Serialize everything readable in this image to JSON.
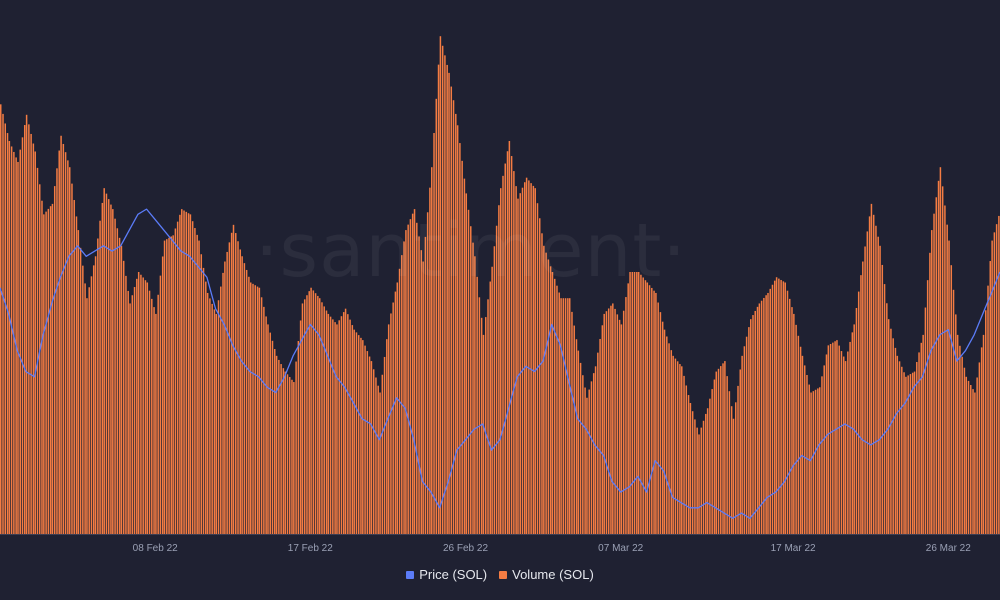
{
  "chart_data": {
    "type": "bar+line",
    "watermark": "·santiment·",
    "x_tick_labels": [
      "08 Feb 22",
      "17 Feb 22",
      "26 Feb 22",
      "07 Mar 22",
      "17 Mar 22",
      "26 Mar 22"
    ],
    "x_range": [
      "2022-01-30",
      "2022-03-29"
    ],
    "series": [
      {
        "name": "Volume (SOL)",
        "type": "bar",
        "color": "#f47c43",
        "points": [
          [
            "2022-01-30T00:00",
            82
          ],
          [
            "2022-01-30T12:00",
            75
          ],
          [
            "2022-01-31T00:00",
            71
          ],
          [
            "2022-01-31T12:00",
            80
          ],
          [
            "2022-02-01T00:00",
            73
          ],
          [
            "2022-02-01T12:00",
            61
          ],
          [
            "2022-02-02T00:00",
            63
          ],
          [
            "2022-02-02T12:00",
            76
          ],
          [
            "2022-02-03T00:00",
            70
          ],
          [
            "2022-02-03T12:00",
            58
          ],
          [
            "2022-02-04T00:00",
            45
          ],
          [
            "2022-02-04T12:00",
            53
          ],
          [
            "2022-02-05T00:00",
            66
          ],
          [
            "2022-02-05T12:00",
            62
          ],
          [
            "2022-02-06T00:00",
            55
          ],
          [
            "2022-02-06T12:00",
            44
          ],
          [
            "2022-02-07T00:00",
            50
          ],
          [
            "2022-02-07T12:00",
            48
          ],
          [
            "2022-02-08T00:00",
            42
          ],
          [
            "2022-02-08T12:00",
            56
          ],
          [
            "2022-02-09T00:00",
            57
          ],
          [
            "2022-02-09T12:00",
            62
          ],
          [
            "2022-02-10T00:00",
            61
          ],
          [
            "2022-02-10T12:00",
            56
          ],
          [
            "2022-02-11T00:00",
            46
          ],
          [
            "2022-02-11T12:00",
            42
          ],
          [
            "2022-02-12T00:00",
            52
          ],
          [
            "2022-02-12T12:00",
            59
          ],
          [
            "2022-02-13T00:00",
            53
          ],
          [
            "2022-02-13T12:00",
            48
          ],
          [
            "2022-02-14T00:00",
            47
          ],
          [
            "2022-02-14T12:00",
            40
          ],
          [
            "2022-02-15T00:00",
            34
          ],
          [
            "2022-02-15T12:00",
            31
          ],
          [
            "2022-02-16T00:00",
            29
          ],
          [
            "2022-02-16T12:00",
            44
          ],
          [
            "2022-02-17T00:00",
            47
          ],
          [
            "2022-02-17T12:00",
            45
          ],
          [
            "2022-02-18T00:00",
            42
          ],
          [
            "2022-02-18T12:00",
            40
          ],
          [
            "2022-02-19T00:00",
            43
          ],
          [
            "2022-02-19T12:00",
            39
          ],
          [
            "2022-02-20T00:00",
            37
          ],
          [
            "2022-02-20T12:00",
            33
          ],
          [
            "2022-02-21T00:00",
            27
          ],
          [
            "2022-02-21T12:00",
            40
          ],
          [
            "2022-02-22T00:00",
            48
          ],
          [
            "2022-02-22T12:00",
            58
          ],
          [
            "2022-02-23T00:00",
            62
          ],
          [
            "2022-02-23T12:00",
            52
          ],
          [
            "2022-02-24T00:00",
            70
          ],
          [
            "2022-02-24T12:00",
            95
          ],
          [
            "2022-02-25T00:00",
            88
          ],
          [
            "2022-02-25T12:00",
            78
          ],
          [
            "2022-02-26T00:00",
            65
          ],
          [
            "2022-02-26T12:00",
            53
          ],
          [
            "2022-02-27T00:00",
            38
          ],
          [
            "2022-02-27T12:00",
            51
          ],
          [
            "2022-02-28T00:00",
            66
          ],
          [
            "2022-02-28T12:00",
            75
          ],
          [
            "2022-03-01T00:00",
            64
          ],
          [
            "2022-03-01T12:00",
            68
          ],
          [
            "2022-03-02T00:00",
            66
          ],
          [
            "2022-03-02T12:00",
            55
          ],
          [
            "2022-03-03T00:00",
            50
          ],
          [
            "2022-03-03T12:00",
            45
          ],
          [
            "2022-03-04T00:00",
            45
          ],
          [
            "2022-03-04T12:00",
            35
          ],
          [
            "2022-03-05T00:00",
            26
          ],
          [
            "2022-03-05T12:00",
            32
          ],
          [
            "2022-03-06T00:00",
            42
          ],
          [
            "2022-03-06T12:00",
            44
          ],
          [
            "2022-03-07T00:00",
            40
          ],
          [
            "2022-03-07T12:00",
            50
          ],
          [
            "2022-03-08T00:00",
            50
          ],
          [
            "2022-03-08T12:00",
            48
          ],
          [
            "2022-03-09T00:00",
            46
          ],
          [
            "2022-03-09T12:00",
            39
          ],
          [
            "2022-03-10T00:00",
            34
          ],
          [
            "2022-03-10T12:00",
            32
          ],
          [
            "2022-03-11T00:00",
            25
          ],
          [
            "2022-03-11T12:00",
            19
          ],
          [
            "2022-03-12T00:00",
            24
          ],
          [
            "2022-03-12T12:00",
            31
          ],
          [
            "2022-03-13T00:00",
            33
          ],
          [
            "2022-03-13T12:00",
            22
          ],
          [
            "2022-03-14T00:00",
            34
          ],
          [
            "2022-03-14T12:00",
            41
          ],
          [
            "2022-03-15T00:00",
            44
          ],
          [
            "2022-03-15T12:00",
            46
          ],
          [
            "2022-03-16T00:00",
            49
          ],
          [
            "2022-03-16T12:00",
            48
          ],
          [
            "2022-03-17T00:00",
            42
          ],
          [
            "2022-03-17T12:00",
            34
          ],
          [
            "2022-03-18T00:00",
            27
          ],
          [
            "2022-03-18T12:00",
            28
          ],
          [
            "2022-03-19T00:00",
            36
          ],
          [
            "2022-03-19T12:00",
            37
          ],
          [
            "2022-03-20T00:00",
            33
          ],
          [
            "2022-03-20T12:00",
            40
          ],
          [
            "2022-03-21T00:00",
            52
          ],
          [
            "2022-03-21T12:00",
            63
          ],
          [
            "2022-03-22T00:00",
            55
          ],
          [
            "2022-03-22T12:00",
            41
          ],
          [
            "2022-03-23T00:00",
            34
          ],
          [
            "2022-03-23T12:00",
            30
          ],
          [
            "2022-03-24T00:00",
            31
          ],
          [
            "2022-03-24T12:00",
            38
          ],
          [
            "2022-03-25T00:00",
            58
          ],
          [
            "2022-03-25T12:00",
            70
          ],
          [
            "2022-03-26T00:00",
            56
          ],
          [
            "2022-03-26T12:00",
            38
          ],
          [
            "2022-03-27T00:00",
            30
          ],
          [
            "2022-03-27T12:00",
            27
          ],
          [
            "2022-03-28T00:00",
            38
          ],
          [
            "2022-03-28T12:00",
            56
          ],
          [
            "2022-03-29T00:00",
            62
          ]
        ]
      },
      {
        "name": "Price (SOL)",
        "type": "line",
        "color": "#5b7cf8",
        "points": [
          [
            "2022-01-30T00:00",
            47
          ],
          [
            "2022-01-30T12:00",
            42
          ],
          [
            "2022-01-31T00:00",
            35
          ],
          [
            "2022-01-31T12:00",
            31
          ],
          [
            "2022-02-01T00:00",
            30
          ],
          [
            "2022-02-01T12:00",
            38
          ],
          [
            "2022-02-02T00:00",
            44
          ],
          [
            "2022-02-02T12:00",
            49
          ],
          [
            "2022-02-03T00:00",
            53
          ],
          [
            "2022-02-03T12:00",
            55
          ],
          [
            "2022-02-04T00:00",
            53
          ],
          [
            "2022-02-04T12:00",
            54
          ],
          [
            "2022-02-05T00:00",
            55
          ],
          [
            "2022-02-05T12:00",
            54
          ],
          [
            "2022-02-06T00:00",
            55
          ],
          [
            "2022-02-06T12:00",
            58
          ],
          [
            "2022-02-07T00:00",
            61
          ],
          [
            "2022-02-07T12:00",
            62
          ],
          [
            "2022-02-08T00:00",
            60
          ],
          [
            "2022-02-08T12:00",
            58
          ],
          [
            "2022-02-09T00:00",
            56
          ],
          [
            "2022-02-09T12:00",
            54
          ],
          [
            "2022-02-10T00:00",
            53
          ],
          [
            "2022-02-10T12:00",
            51
          ],
          [
            "2022-02-11T00:00",
            49
          ],
          [
            "2022-02-11T12:00",
            43
          ],
          [
            "2022-02-12T00:00",
            40
          ],
          [
            "2022-02-12T12:00",
            36
          ],
          [
            "2022-02-13T00:00",
            33
          ],
          [
            "2022-02-13T12:00",
            31
          ],
          [
            "2022-02-14T00:00",
            30
          ],
          [
            "2022-02-14T12:00",
            28
          ],
          [
            "2022-02-15T00:00",
            27
          ],
          [
            "2022-02-15T12:00",
            30
          ],
          [
            "2022-02-16T00:00",
            34
          ],
          [
            "2022-02-16T12:00",
            37
          ],
          [
            "2022-02-17T00:00",
            40
          ],
          [
            "2022-02-17T12:00",
            38
          ],
          [
            "2022-02-18T00:00",
            34
          ],
          [
            "2022-02-18T12:00",
            30
          ],
          [
            "2022-02-19T00:00",
            28
          ],
          [
            "2022-02-19T12:00",
            25
          ],
          [
            "2022-02-20T00:00",
            22
          ],
          [
            "2022-02-20T12:00",
            21
          ],
          [
            "2022-02-21T00:00",
            18
          ],
          [
            "2022-02-21T12:00",
            22
          ],
          [
            "2022-02-22T00:00",
            26
          ],
          [
            "2022-02-22T12:00",
            24
          ],
          [
            "2022-02-23T00:00",
            18
          ],
          [
            "2022-02-23T12:00",
            10
          ],
          [
            "2022-02-24T00:00",
            8
          ],
          [
            "2022-02-24T12:00",
            5
          ],
          [
            "2022-02-25T00:00",
            10
          ],
          [
            "2022-02-25T12:00",
            16
          ],
          [
            "2022-02-26T00:00",
            18
          ],
          [
            "2022-02-26T12:00",
            20
          ],
          [
            "2022-02-27T00:00",
            21
          ],
          [
            "2022-02-27T12:00",
            16
          ],
          [
            "2022-02-28T00:00",
            18
          ],
          [
            "2022-02-28T12:00",
            24
          ],
          [
            "2022-03-01T00:00",
            30
          ],
          [
            "2022-03-01T12:00",
            32
          ],
          [
            "2022-03-02T00:00",
            31
          ],
          [
            "2022-03-02T12:00",
            33
          ],
          [
            "2022-03-03T00:00",
            40
          ],
          [
            "2022-03-03T12:00",
            36
          ],
          [
            "2022-03-04T00:00",
            29
          ],
          [
            "2022-03-04T12:00",
            22
          ],
          [
            "2022-03-05T00:00",
            20
          ],
          [
            "2022-03-05T12:00",
            17
          ],
          [
            "2022-03-06T00:00",
            15
          ],
          [
            "2022-03-06T12:00",
            10
          ],
          [
            "2022-03-07T00:00",
            8
          ],
          [
            "2022-03-07T12:00",
            9
          ],
          [
            "2022-03-08T00:00",
            11
          ],
          [
            "2022-03-08T12:00",
            8
          ],
          [
            "2022-03-09T00:00",
            14
          ],
          [
            "2022-03-09T12:00",
            12
          ],
          [
            "2022-03-10T00:00",
            7
          ],
          [
            "2022-03-10T12:00",
            6
          ],
          [
            "2022-03-11T00:00",
            5
          ],
          [
            "2022-03-11T12:00",
            5
          ],
          [
            "2022-03-12T00:00",
            6
          ],
          [
            "2022-03-12T12:00",
            5
          ],
          [
            "2022-03-13T00:00",
            4
          ],
          [
            "2022-03-13T12:00",
            3
          ],
          [
            "2022-03-14T00:00",
            4
          ],
          [
            "2022-03-14T12:00",
            3
          ],
          [
            "2022-03-15T00:00",
            5
          ],
          [
            "2022-03-15T12:00",
            7
          ],
          [
            "2022-03-16T00:00",
            8
          ],
          [
            "2022-03-16T12:00",
            10
          ],
          [
            "2022-03-17T00:00",
            13
          ],
          [
            "2022-03-17T12:00",
            15
          ],
          [
            "2022-03-18T00:00",
            14
          ],
          [
            "2022-03-18T12:00",
            17
          ],
          [
            "2022-03-19T00:00",
            19
          ],
          [
            "2022-03-19T12:00",
            20
          ],
          [
            "2022-03-20T00:00",
            21
          ],
          [
            "2022-03-20T12:00",
            20
          ],
          [
            "2022-03-21T00:00",
            18
          ],
          [
            "2022-03-21T12:00",
            17
          ],
          [
            "2022-03-22T00:00",
            18
          ],
          [
            "2022-03-22T12:00",
            20
          ],
          [
            "2022-03-23T00:00",
            23
          ],
          [
            "2022-03-23T12:00",
            25
          ],
          [
            "2022-03-24T00:00",
            28
          ],
          [
            "2022-03-24T12:00",
            30
          ],
          [
            "2022-03-25T00:00",
            35
          ],
          [
            "2022-03-25T12:00",
            38
          ],
          [
            "2022-03-26T00:00",
            39
          ],
          [
            "2022-03-26T12:00",
            33
          ],
          [
            "2022-03-27T00:00",
            35
          ],
          [
            "2022-03-27T12:00",
            38
          ],
          [
            "2022-03-28T00:00",
            42
          ],
          [
            "2022-03-28T12:00",
            46
          ],
          [
            "2022-03-29T00:00",
            50
          ]
        ]
      }
    ],
    "y_axis_labels_shown": false,
    "grid": false,
    "legend_position": "bottom-center"
  },
  "legend": {
    "price_label": "Price (SOL)",
    "volume_label": "Volume (SOL)"
  }
}
